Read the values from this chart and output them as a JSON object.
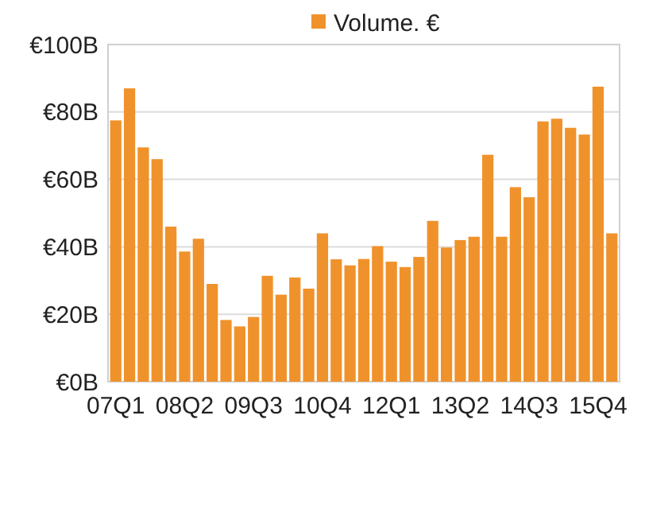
{
  "chart_data": {
    "type": "bar",
    "categories": [
      "07Q1",
      null,
      null,
      null,
      null,
      "08Q2",
      null,
      null,
      null,
      null,
      "09Q3",
      null,
      null,
      null,
      null,
      "10Q4",
      null,
      null,
      null,
      null,
      "12Q1",
      null,
      null,
      null,
      null,
      "13Q2",
      null,
      null,
      null,
      null,
      "14Q3",
      null,
      null,
      null,
      null,
      "15Q4",
      null
    ],
    "series": [
      {
        "name": "Volume. €",
        "color": "#f0922b",
        "values": [
          77.5,
          87,
          69.5,
          66,
          46,
          38.6,
          42.4,
          29,
          18.3,
          16.4,
          19.2,
          31.4,
          25.8,
          30.9,
          27.6,
          44,
          36.3,
          34.5,
          36.4,
          40.2,
          35.6,
          34,
          37,
          47.7,
          39.8,
          42,
          43,
          67.3,
          43,
          57.7,
          54.7,
          77.2,
          78,
          75.3,
          73.3,
          87.5,
          44
        ]
      }
    ],
    "ylim": [
      0,
      100
    ],
    "yticks": [
      {
        "value": 0,
        "label": "€0B"
      },
      {
        "value": 20,
        "label": "€20B"
      },
      {
        "value": 40,
        "label": "€40B"
      },
      {
        "value": 60,
        "label": "€60B"
      },
      {
        "value": 80,
        "label": "€80B"
      },
      {
        "value": 100,
        "label": "€100B"
      }
    ],
    "grid": "y",
    "legend": "top"
  }
}
